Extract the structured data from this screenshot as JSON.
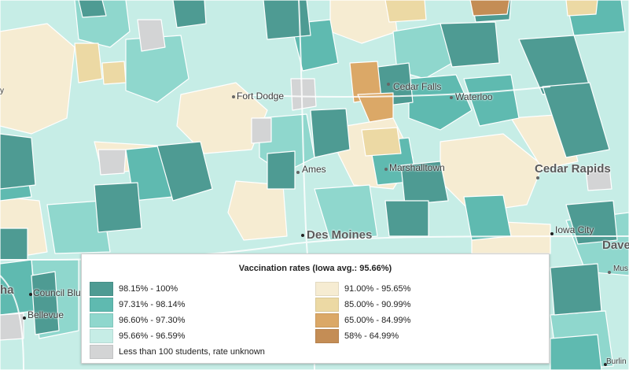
{
  "legend": {
    "title": "Vaccination rates (Iowa avg.: 95.66%)",
    "items": [
      {
        "label": "98.15% - 100%",
        "color": "#4e9b93"
      },
      {
        "label": "97.31% - 98.14%",
        "color": "#5fbab0"
      },
      {
        "label": "96.60% - 97.30%",
        "color": "#8fd7cd"
      },
      {
        "label": "95.66% - 96.59%",
        "color": "#c6ede6"
      },
      {
        "label": "Less than 100 students, rate unknown",
        "color": "#d3d4d5"
      },
      {
        "label": "91.00% - 95.65%",
        "color": "#f6ecd2"
      },
      {
        "label": "85.00% - 90.99%",
        "color": "#ecd9a4"
      },
      {
        "label": "65.00% - 84.99%",
        "color": "#dba867"
      },
      {
        "label": "58% - 64.99%",
        "color": "#c48d55"
      }
    ]
  },
  "cities": {
    "fort_dodge": "Fort Dodge",
    "cedar_falls": "Cedar Falls",
    "waterloo": "Waterloo",
    "ames": "Ames",
    "marshalltown": "Marshalltown",
    "cedar_rapids": "Cedar Rapids",
    "des_moines": "Des Moines",
    "iowa_city": "Iowa City",
    "council_bluffs": "Council Bluff",
    "bellevue": "Bellevue",
    "omaha_partial": "ha",
    "davenport_partial": "Dave",
    "muscatine_partial": "Mus",
    "burlington_partial": "Burlin",
    "left_edge_partial": "y"
  }
}
